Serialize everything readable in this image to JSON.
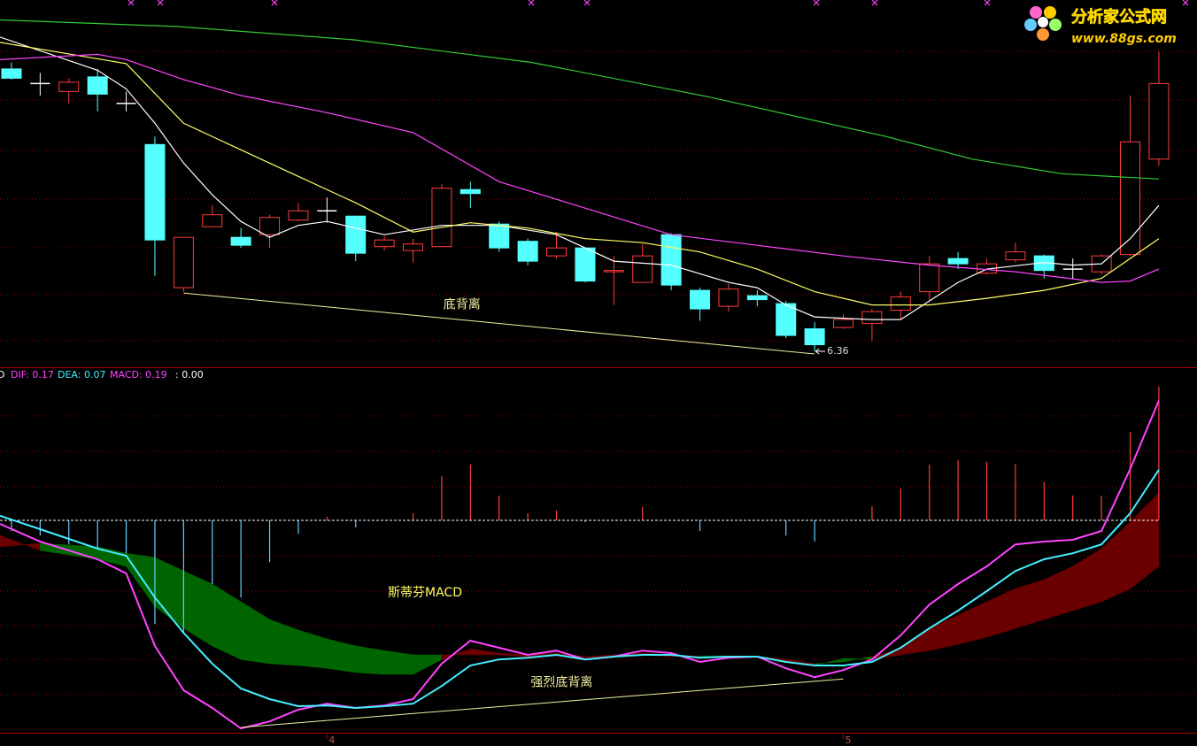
{
  "chart_data": [
    {
      "type": "candlestick",
      "xlim": [
        -0.4,
        41.33
      ],
      "ylim": [
        6.24,
        9.01
      ],
      "up_color": "#ff3c3c",
      "down_color": "#54ffff",
      "flat_color": "#ffffff",
      "x": [
        0,
        1,
        2,
        3,
        4,
        5,
        6,
        7,
        8,
        9,
        10,
        11,
        12,
        13,
        14,
        15,
        16,
        17,
        18,
        19,
        20,
        21,
        22,
        23,
        24,
        25,
        26,
        27,
        28,
        29,
        30,
        31,
        32,
        33,
        34,
        35,
        36,
        37,
        38,
        39,
        40
      ],
      "open": [
        8.49,
        8.38,
        8.32,
        8.43,
        8.23,
        7.92,
        6.84,
        7.3,
        7.22,
        7.24,
        7.35,
        7.42,
        7.38,
        7.15,
        7.12,
        7.15,
        7.58,
        7.32,
        7.19,
        7.08,
        7.14,
        6.96,
        6.88,
        7.24,
        6.82,
        6.7,
        6.78,
        6.72,
        6.53,
        6.54,
        6.57,
        6.67,
        6.81,
        7.06,
        6.95,
        7.05,
        7.08,
        6.98,
        6.96,
        7.09,
        7.81
      ],
      "high": [
        8.54,
        8.46,
        8.42,
        8.49,
        8.32,
        7.98,
        7.22,
        7.46,
        7.29,
        7.39,
        7.48,
        7.52,
        7.38,
        7.23,
        7.21,
        7.62,
        7.64,
        7.34,
        7.21,
        7.26,
        7.14,
        7.08,
        7.17,
        7.25,
        6.84,
        6.87,
        6.82,
        6.74,
        6.58,
        6.64,
        6.68,
        6.81,
        7.08,
        7.11,
        7.06,
        7.18,
        7.09,
        7.06,
        7.09,
        8.29,
        8.62
      ],
      "low": [
        8.41,
        8.29,
        8.23,
        8.17,
        8.17,
        6.93,
        6.81,
        7.3,
        7.14,
        7.14,
        7.34,
        7.33,
        7.04,
        7.12,
        7.03,
        7.15,
        7.44,
        7.11,
        7.01,
        7.06,
        6.88,
        6.71,
        6.88,
        6.82,
        6.59,
        6.66,
        6.7,
        6.46,
        6.36,
        6.53,
        6.44,
        6.6,
        6.74,
        6.98,
        6.94,
        7.03,
        6.91,
        6.91,
        6.94,
        7.08,
        7.76
      ],
      "close": [
        8.42,
        8.38,
        8.39,
        8.3,
        8.23,
        7.2,
        7.22,
        7.39,
        7.16,
        7.37,
        7.42,
        7.42,
        7.1,
        7.2,
        7.17,
        7.59,
        7.55,
        7.14,
        7.04,
        7.14,
        6.89,
        6.97,
        7.08,
        6.86,
        6.68,
        6.83,
        6.75,
        6.48,
        6.41,
        6.6,
        6.66,
        6.77,
        7.02,
        7.02,
        7.02,
        7.11,
        6.97,
        6.98,
        7.08,
        7.94,
        8.38
      ],
      "lines": [
        {
          "color": "#ffffff",
          "x": [
            -0.4,
            3,
            4,
            5,
            6,
            7,
            8,
            9,
            10,
            11,
            13,
            15,
            17,
            19,
            21,
            23,
            25,
            26,
            27,
            28,
            30,
            31,
            32,
            33,
            34,
            36,
            37,
            38,
            39,
            40
          ],
          "values": [
            8.73,
            8.48,
            8.34,
            8.08,
            7.78,
            7.54,
            7.34,
            7.22,
            7.31,
            7.34,
            7.24,
            7.31,
            7.31,
            7.24,
            7.04,
            7.01,
            6.88,
            6.84,
            6.71,
            6.62,
            6.6,
            6.6,
            6.74,
            6.88,
            6.98,
            7.03,
            7.01,
            7.02,
            7.21,
            7.46
          ]
        },
        {
          "color": "#ffff66",
          "x": [
            -0.4,
            4,
            6,
            8,
            10,
            12,
            14,
            16,
            18,
            20,
            22,
            24,
            26,
            28,
            30,
            32,
            34,
            36,
            38,
            40
          ],
          "values": [
            8.69,
            8.53,
            8.08,
            7.88,
            7.68,
            7.48,
            7.26,
            7.33,
            7.29,
            7.21,
            7.18,
            7.11,
            6.98,
            6.81,
            6.71,
            6.71,
            6.76,
            6.82,
            6.91,
            7.21
          ]
        },
        {
          "color": "#ff44ff",
          "x": [
            -0.4,
            3,
            4,
            6,
            8,
            11,
            14,
            17,
            20,
            23,
            26,
            29,
            32,
            35,
            38,
            39,
            40
          ],
          "values": [
            8.56,
            8.6,
            8.56,
            8.41,
            8.29,
            8.16,
            8.01,
            7.64,
            7.44,
            7.24,
            7.16,
            7.08,
            7.01,
            6.96,
            6.88,
            6.89,
            6.98
          ]
        },
        {
          "color": "#33cc33",
          "x": [
            -0.4,
            5.8,
            11.9,
            18.1,
            24.3,
            30.5,
            33.5,
            36.6,
            40
          ],
          "values": [
            8.86,
            8.81,
            8.71,
            8.54,
            8.28,
            7.98,
            7.81,
            7.7,
            7.66
          ]
        }
      ],
      "divergence": {
        "x": [
          6,
          28
        ],
        "values": [
          6.8,
          6.34
        ],
        "color": "#f0f0a0",
        "label": "底背离"
      },
      "low_label": {
        "x": 28,
        "value": 6.36
      }
    },
    {
      "type": "macd",
      "xlim": [
        -0.4,
        41.33
      ],
      "ylim": [
        -0.6,
        0.425
      ],
      "zero_line": 0,
      "title": "斯蒂芬MACD",
      "header_prefix": "D",
      "header_suffix": ": 0.00",
      "x": [
        -0.4,
        1,
        3,
        4,
        5,
        6,
        7,
        8,
        9,
        10,
        11,
        12,
        13,
        14,
        15,
        16,
        17,
        18,
        19,
        20,
        21,
        22,
        23,
        24,
        25,
        26,
        27,
        28,
        29,
        30,
        31,
        32,
        33,
        34,
        35,
        36,
        37,
        38,
        39,
        40
      ],
      "series": [
        {
          "name": "DIF: 0.17",
          "color": "#ff44ff",
          "values": [
            -0.01,
            -0.06,
            -0.11,
            -0.15,
            -0.355,
            -0.48,
            -0.53,
            -0.588,
            -0.568,
            -0.535,
            -0.518,
            -0.53,
            -0.523,
            -0.505,
            -0.405,
            -0.34,
            -0.36,
            -0.38,
            -0.368,
            -0.393,
            -0.385,
            -0.368,
            -0.375,
            -0.4,
            -0.388,
            -0.385,
            -0.418,
            -0.443,
            -0.423,
            -0.393,
            -0.325,
            -0.238,
            -0.18,
            -0.13,
            -0.068,
            -0.06,
            -0.055,
            -0.03,
            0.145,
            0.338
          ]
        },
        {
          "name": "DEA: 0.07",
          "color": "#44eeff",
          "values": [
            0.013,
            -0.025,
            -0.08,
            -0.1,
            -0.218,
            -0.318,
            -0.405,
            -0.475,
            -0.505,
            -0.525,
            -0.523,
            -0.53,
            -0.525,
            -0.518,
            -0.468,
            -0.41,
            -0.393,
            -0.388,
            -0.38,
            -0.393,
            -0.385,
            -0.38,
            -0.38,
            -0.388,
            -0.385,
            -0.385,
            -0.4,
            -0.41,
            -0.41,
            -0.4,
            -0.36,
            -0.305,
            -0.255,
            -0.2,
            -0.143,
            -0.11,
            -0.093,
            -0.068,
            0.02,
            0.143
          ]
        }
      ],
      "band": {
        "up_color": "#6a0000",
        "down_color": "#006400",
        "a": [
          -0.043,
          -0.085,
          -0.11,
          -0.13,
          -0.243,
          -0.305,
          -0.355,
          -0.393,
          -0.405,
          -0.41,
          -0.418,
          -0.43,
          -0.435,
          -0.435,
          -0.393,
          -0.363,
          -0.375,
          -0.38,
          -0.375,
          -0.385,
          -0.38,
          -0.375,
          -0.38,
          -0.385,
          -0.383,
          -0.385,
          -0.393,
          -0.405,
          -0.4,
          -0.385,
          -0.363,
          -0.305,
          -0.268,
          -0.23,
          -0.193,
          -0.168,
          -0.13,
          -0.08,
          -0.005,
          0.078
        ],
        "b": [
          -0.075,
          -0.065,
          -0.075,
          -0.093,
          -0.105,
          -0.143,
          -0.18,
          -0.23,
          -0.28,
          -0.31,
          -0.335,
          -0.355,
          -0.368,
          -0.38,
          -0.38,
          -0.38,
          -0.38,
          -0.385,
          -0.383,
          -0.388,
          -0.385,
          -0.38,
          -0.385,
          -0.383,
          -0.383,
          -0.385,
          -0.398,
          -0.41,
          -0.39,
          -0.393,
          -0.38,
          -0.368,
          -0.35,
          -0.33,
          -0.305,
          -0.28,
          -0.255,
          -0.23,
          -0.193,
          -0.13
        ]
      },
      "histogram": {
        "name": "MACD: 0.19",
        "color": "#ff44ff",
        "up_color": "#ff3c3c",
        "down_color": "#66ccff",
        "x": [
          0,
          1,
          2,
          3,
          4,
          5,
          6,
          7,
          8,
          9,
          10,
          11,
          12,
          13,
          14,
          15,
          16,
          17,
          18,
          19,
          20,
          21,
          22,
          23,
          24,
          25,
          26,
          27,
          28,
          29,
          30,
          31,
          32,
          33,
          34,
          35,
          36,
          37,
          38,
          39,
          40
        ],
        "values": [
          -0.03,
          -0.043,
          -0.068,
          -0.08,
          -0.093,
          -0.293,
          -0.318,
          -0.18,
          -0.218,
          -0.118,
          -0.038,
          0.01,
          -0.02,
          0,
          0.02,
          0.125,
          0.158,
          0.07,
          0.02,
          0.028,
          -0.005,
          0,
          0.038,
          0,
          -0.03,
          0,
          0,
          -0.043,
          -0.06,
          0,
          0.04,
          0.09,
          0.158,
          0.17,
          0.165,
          0.16,
          0.108,
          0.07,
          0.07,
          0.25,
          0.378
        ]
      },
      "divergence": {
        "x": [
          8,
          29
        ],
        "values": [
          -0.585,
          -0.448
        ],
        "color": "#f0f0a0",
        "label": "强烈底背离"
      },
      "xticks": [
        {
          "value": 11,
          "label": "4"
        },
        {
          "value": 29,
          "label": "5"
        }
      ]
    }
  ],
  "watermark": {
    "title": "分析家公式网",
    "url": "www.88gs.com"
  }
}
